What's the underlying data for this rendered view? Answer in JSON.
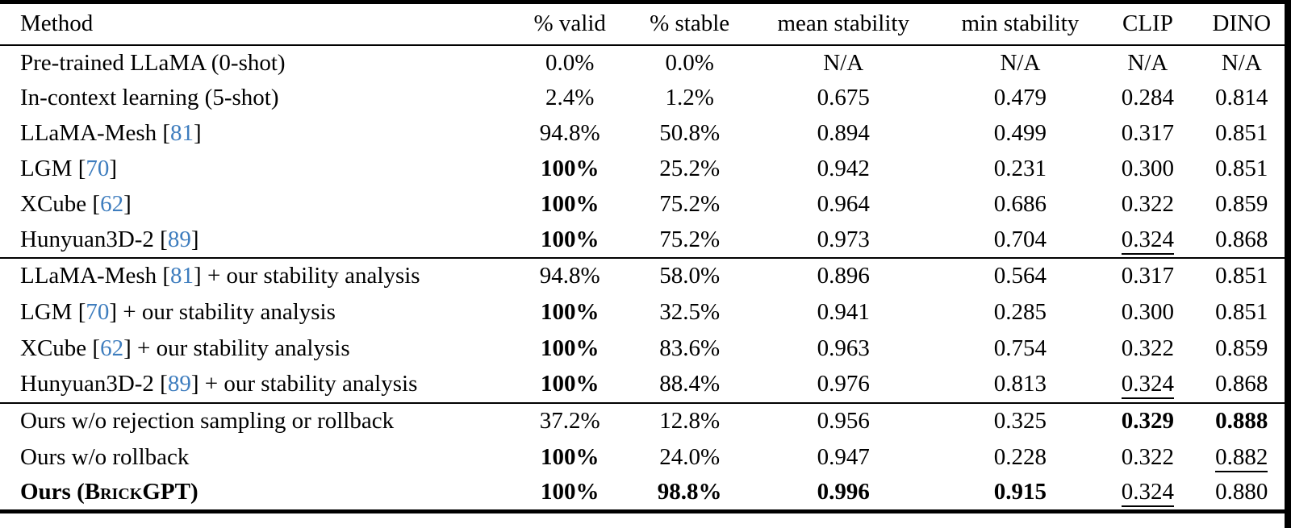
{
  "table": {
    "citation_color": "#3E7DBE",
    "columns": [
      {
        "key": "method",
        "label": "Method"
      },
      {
        "key": "valid",
        "label": "% valid"
      },
      {
        "key": "stable",
        "label": "% stable"
      },
      {
        "key": "mean-stability",
        "label": "mean stability"
      },
      {
        "key": "min-stability",
        "label": "min stability"
      },
      {
        "key": "clip",
        "label": "CLIP"
      },
      {
        "key": "dino",
        "label": "DINO"
      }
    ],
    "groups": [
      {
        "rows": [
          {
            "method": [
              {
                "t": "Pre-trained LLaMA (0-shot)"
              }
            ],
            "cells": [
              {
                "t": "0.0%"
              },
              {
                "t": "0.0%"
              },
              {
                "t": "N/A"
              },
              {
                "t": "N/A"
              },
              {
                "t": "N/A"
              },
              {
                "t": "N/A"
              }
            ]
          },
          {
            "method": [
              {
                "t": "In-context learning (5-shot)"
              }
            ],
            "cells": [
              {
                "t": "2.4%"
              },
              {
                "t": "1.2%"
              },
              {
                "t": "0.675"
              },
              {
                "t": "0.479"
              },
              {
                "t": "0.284"
              },
              {
                "t": "0.814"
              }
            ]
          },
          {
            "method": [
              {
                "t": "LLaMA-Mesh ["
              },
              {
                "t": "81",
                "cite": true
              },
              {
                "t": "]"
              }
            ],
            "cells": [
              {
                "t": "94.8%"
              },
              {
                "t": "50.8%"
              },
              {
                "t": "0.894"
              },
              {
                "t": "0.499"
              },
              {
                "t": "0.317"
              },
              {
                "t": "0.851"
              }
            ]
          },
          {
            "method": [
              {
                "t": "LGM ["
              },
              {
                "t": "70",
                "cite": true
              },
              {
                "t": "]"
              }
            ],
            "cells": [
              {
                "t": "100%",
                "b": true
              },
              {
                "t": "25.2%"
              },
              {
                "t": "0.942"
              },
              {
                "t": "0.231"
              },
              {
                "t": "0.300"
              },
              {
                "t": "0.851"
              }
            ]
          },
          {
            "method": [
              {
                "t": "XCube ["
              },
              {
                "t": "62",
                "cite": true
              },
              {
                "t": "]"
              }
            ],
            "cells": [
              {
                "t": "100%",
                "b": true
              },
              {
                "t": "75.2%"
              },
              {
                "t": "0.964"
              },
              {
                "t": "0.686"
              },
              {
                "t": "0.322"
              },
              {
                "t": "0.859"
              }
            ]
          },
          {
            "method": [
              {
                "t": "Hunyuan3D-2 ["
              },
              {
                "t": "89",
                "cite": true
              },
              {
                "t": "]"
              }
            ],
            "cells": [
              {
                "t": "100%",
                "b": true
              },
              {
                "t": "75.2%"
              },
              {
                "t": "0.973"
              },
              {
                "t": "0.704"
              },
              {
                "t": "0.324",
                "u": true
              },
              {
                "t": "0.868"
              }
            ]
          }
        ]
      },
      {
        "rows": [
          {
            "method": [
              {
                "t": "LLaMA-Mesh ["
              },
              {
                "t": "81",
                "cite": true
              },
              {
                "t": "] + our stability analysis"
              }
            ],
            "cells": [
              {
                "t": "94.8%"
              },
              {
                "t": "58.0%"
              },
              {
                "t": "0.896"
              },
              {
                "t": "0.564"
              },
              {
                "t": "0.317"
              },
              {
                "t": "0.851"
              }
            ]
          },
          {
            "method": [
              {
                "t": "LGM ["
              },
              {
                "t": "70",
                "cite": true
              },
              {
                "t": "] + our stability analysis"
              }
            ],
            "cells": [
              {
                "t": "100%",
                "b": true
              },
              {
                "t": "32.5%"
              },
              {
                "t": "0.941"
              },
              {
                "t": "0.285"
              },
              {
                "t": "0.300"
              },
              {
                "t": "0.851"
              }
            ]
          },
          {
            "method": [
              {
                "t": "XCube ["
              },
              {
                "t": "62",
                "cite": true
              },
              {
                "t": "] + our stability analysis"
              }
            ],
            "cells": [
              {
                "t": "100%",
                "b": true
              },
              {
                "t": "83.6%"
              },
              {
                "t": "0.963"
              },
              {
                "t": "0.754"
              },
              {
                "t": "0.322"
              },
              {
                "t": "0.859"
              }
            ]
          },
          {
            "method": [
              {
                "t": "Hunyuan3D-2 ["
              },
              {
                "t": "89",
                "cite": true
              },
              {
                "t": "] + our stability analysis"
              }
            ],
            "cells": [
              {
                "t": "100%",
                "b": true
              },
              {
                "t": "88.4%"
              },
              {
                "t": "0.976"
              },
              {
                "t": "0.813"
              },
              {
                "t": "0.324",
                "u": true
              },
              {
                "t": "0.868"
              }
            ]
          }
        ]
      },
      {
        "rows": [
          {
            "method": [
              {
                "t": "Ours w/o rejection sampling or rollback"
              }
            ],
            "cells": [
              {
                "t": "37.2%"
              },
              {
                "t": "12.8%"
              },
              {
                "t": "0.956"
              },
              {
                "t": "0.325"
              },
              {
                "t": "0.329",
                "b": true
              },
              {
                "t": "0.888",
                "b": true
              }
            ]
          },
          {
            "method": [
              {
                "t": "Ours w/o rollback"
              }
            ],
            "cells": [
              {
                "t": "100%",
                "b": true
              },
              {
                "t": "24.0%"
              },
              {
                "t": "0.947"
              },
              {
                "t": "0.228"
              },
              {
                "t": "0.322"
              },
              {
                "t": "0.882",
                "u": true
              }
            ]
          },
          {
            "method": [
              {
                "t": "Ours (",
                "b": true
              },
              {
                "t": "Brick",
                "b": true,
                "sc": true
              },
              {
                "t": "GPT",
                "b": true
              },
              {
                "t": ")",
                "b": true
              }
            ],
            "cells": [
              {
                "t": "100%",
                "b": true
              },
              {
                "t": "98.8%",
                "b": true
              },
              {
                "t": "0.996",
                "b": true
              },
              {
                "t": "0.915",
                "b": true
              },
              {
                "t": "0.324",
                "u": true
              },
              {
                "t": "0.880"
              }
            ]
          }
        ]
      }
    ]
  }
}
